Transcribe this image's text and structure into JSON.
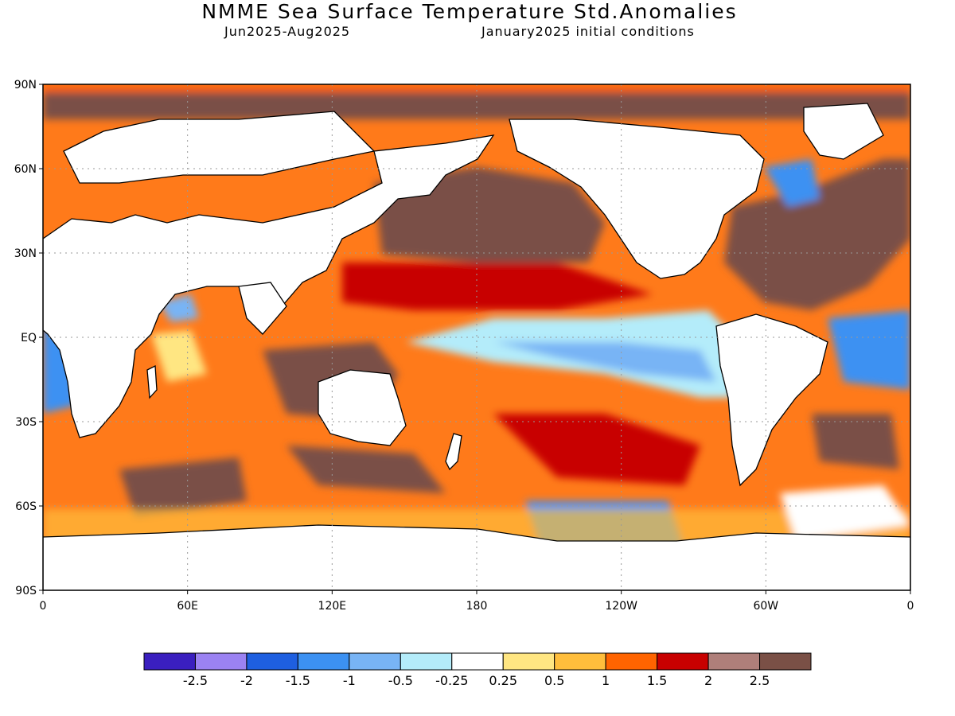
{
  "header": {
    "title": "NMME Sea Surface Temperature Std.Anomalies",
    "period": "Jun2025-Aug2025",
    "init": "January2025 initial conditions"
  },
  "map": {
    "lat_ticks": [
      {
        "value": 90,
        "label": "90N"
      },
      {
        "value": 60,
        "label": "60N"
      },
      {
        "value": 30,
        "label": "30N"
      },
      {
        "value": 0,
        "label": "EQ"
      },
      {
        "value": -30,
        "label": "30S"
      },
      {
        "value": -60,
        "label": "60S"
      },
      {
        "value": -90,
        "label": "90S"
      }
    ],
    "lon_ticks": [
      {
        "value": 0,
        "label": "0"
      },
      {
        "value": 60,
        "label": "60E"
      },
      {
        "value": 120,
        "label": "120E"
      },
      {
        "value": 180,
        "label": "180"
      },
      {
        "value": 240,
        "label": "120W"
      },
      {
        "value": 300,
        "label": "60W"
      },
      {
        "value": 360,
        "label": "0"
      }
    ],
    "lon_range": [
      0,
      360
    ],
    "lat_range": [
      -90,
      90
    ],
    "grid": "dotted",
    "projection": "cylindrical equidistant",
    "land_color": "#ffffff",
    "coastline_color": "#000000"
  },
  "colorbar": {
    "colors": [
      "#3a1fbf",
      "#9b82f2",
      "#1e5fe0",
      "#3c91f2",
      "#78b4f5",
      "#b4ecfa",
      "#ffffff",
      "#ffe682",
      "#ffbe3c",
      "#ff6400",
      "#c80000",
      "#af7f7a",
      "#7a5046"
    ],
    "labels": [
      "-2.5",
      "-2",
      "-1.5",
      "-1",
      "-0.5",
      "-0.25",
      "0.25",
      "0.5",
      "1",
      "1.5",
      "2",
      "2.5"
    ]
  }
}
